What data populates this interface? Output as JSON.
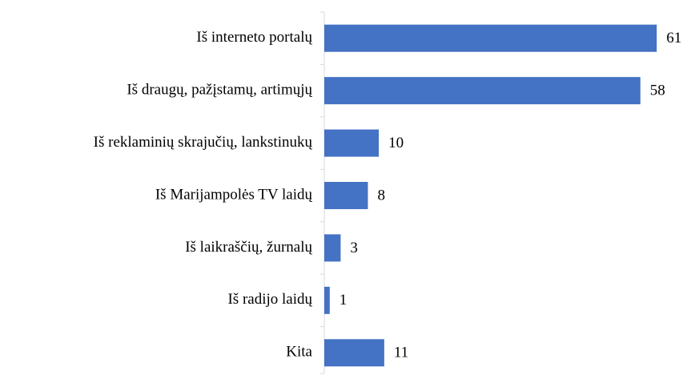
{
  "chart_data": {
    "type": "bar",
    "orientation": "horizontal",
    "categories": [
      "Iš interneto portalų",
      "Iš draugų, pažįstamų, artimųjų",
      "Iš reklaminių skrajučių, lankstinukų",
      "Iš Marijampolės TV laidų",
      "Iš laikraščių, žurnalų",
      "Iš radijo laidų",
      "Kita"
    ],
    "values": [
      61,
      58,
      10,
      8,
      3,
      1,
      11
    ],
    "color": "#4472c4",
    "xlim": [
      0,
      62
    ]
  }
}
